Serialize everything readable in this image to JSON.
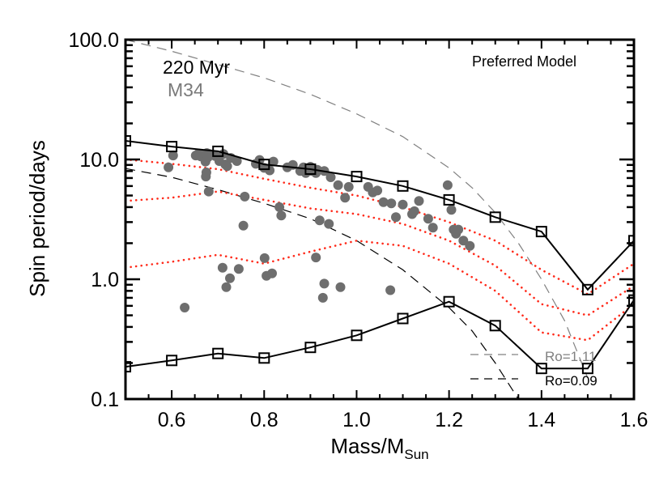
{
  "chart_data": {
    "type": "scatter",
    "title": "Preferred Model",
    "xlabel": "Mass/M_Sun",
    "xlabel_main": "Mass/M",
    "xlabel_sub": "Sun",
    "ylabel": "Spin period/days",
    "xlim": [
      0.5,
      1.6
    ],
    "ylim": [
      0.1,
      100.0
    ],
    "yscale": "log",
    "grid": false,
    "x_ticks": [
      0.6,
      0.8,
      1.0,
      1.2,
      1.4,
      1.6
    ],
    "x_tick_labels": [
      "0.6",
      "0.8",
      "1.0",
      "1.2",
      "1.4",
      "1.6"
    ],
    "y_ticks": [
      0.1,
      1.0,
      10.0,
      100.0
    ],
    "y_tick_labels": [
      "0.1",
      "1.0",
      "10.0",
      "100.0"
    ],
    "annotations": {
      "age": "220 Myr",
      "cluster": "M34",
      "model": "Preferred Model"
    },
    "legend": [
      {
        "label": "Ro=1.11",
        "style": "dashed",
        "color": "#808080"
      },
      {
        "label": "Ro=0.09",
        "style": "dashed",
        "color": "#000000"
      }
    ],
    "colors": {
      "model_line": "#000000",
      "percentile_lines": "#ff2a1a",
      "observed_points": "#6e6e6e",
      "ro_111": "#808080",
      "ro_009": "#000000"
    },
    "series": [
      {
        "name": "Model upper envelope",
        "style": "solid-line-open-squares",
        "x": [
          0.5,
          0.6,
          0.7,
          0.8,
          0.9,
          1.0,
          1.1,
          1.2,
          1.3,
          1.4,
          1.5,
          1.6
        ],
        "y": [
          14.3,
          12.8,
          11.7,
          9.1,
          8.3,
          7.2,
          6.0,
          4.6,
          3.3,
          2.5,
          0.82,
          2.1
        ]
      },
      {
        "name": "Model lower envelope",
        "style": "solid-line-open-squares",
        "x": [
          0.5,
          0.6,
          0.7,
          0.8,
          0.9,
          1.0,
          1.1,
          1.2,
          1.3,
          1.4,
          1.5,
          1.6
        ],
        "y": [
          0.186,
          0.21,
          0.24,
          0.22,
          0.27,
          0.34,
          0.47,
          0.65,
          0.41,
          0.18,
          0.18,
          0.67
        ]
      },
      {
        "name": "Percentile 90",
        "style": "dotted-red",
        "x": [
          0.5,
          0.6,
          0.7,
          0.8,
          0.9,
          1.0,
          1.1,
          1.2,
          1.3,
          1.4,
          1.5,
          1.6
        ],
        "y": [
          10.0,
          9.2,
          8.3,
          6.9,
          5.8,
          5.0,
          4.0,
          3.0,
          2.1,
          1.2,
          0.75,
          1.35
        ]
      },
      {
        "name": "Percentile 50",
        "style": "dotted-red",
        "x": [
          0.5,
          0.6,
          0.7,
          0.8,
          0.9,
          1.0,
          1.1,
          1.2,
          1.3,
          1.4,
          1.5,
          1.6
        ],
        "y": [
          4.5,
          4.8,
          5.4,
          4.6,
          3.9,
          3.5,
          2.9,
          2.1,
          1.3,
          0.62,
          0.5,
          0.88
        ]
      },
      {
        "name": "Percentile 10",
        "style": "dotted-red",
        "x": [
          0.5,
          0.6,
          0.7,
          0.8,
          0.9,
          1.0,
          1.1,
          1.2,
          1.3,
          1.4,
          1.5,
          1.6
        ],
        "y": [
          1.25,
          1.4,
          1.6,
          1.35,
          1.7,
          2.1,
          1.9,
          1.35,
          0.8,
          0.36,
          0.31,
          0.62
        ]
      },
      {
        "name": "Ro=1.11",
        "style": "dashed-gray",
        "x": [
          0.5,
          0.6,
          0.7,
          0.8,
          0.9,
          1.0,
          1.1,
          1.2,
          1.25,
          1.3,
          1.35,
          1.4,
          1.45,
          1.5
        ],
        "y": [
          100.0,
          80.0,
          62.0,
          48.0,
          35.0,
          24.0,
          15.5,
          8.5,
          5.8,
          3.6,
          2.0,
          1.0,
          0.45,
          0.15
        ]
      },
      {
        "name": "Ro=0.09",
        "style": "dashed-black",
        "x": [
          0.5,
          0.6,
          0.7,
          0.8,
          0.9,
          1.0,
          1.1,
          1.2,
          1.25,
          1.3,
          1.35
        ],
        "y": [
          8.4,
          7.1,
          5.6,
          4.3,
          3.2,
          2.1,
          1.2,
          0.58,
          0.37,
          0.2,
          0.1
        ]
      },
      {
        "name": "M34 observed",
        "style": "filled-gray-circles",
        "x": [
          0.593,
          0.603,
          0.628,
          0.652,
          0.658,
          0.663,
          0.669,
          0.674,
          0.675,
          0.68,
          0.676,
          0.678,
          0.673,
          0.682,
          0.694,
          0.703,
          0.712,
          0.716,
          0.72,
          0.728,
          0.741,
          0.758,
          0.782,
          0.79,
          0.8,
          0.812,
          0.82,
          0.837,
          0.85,
          0.862,
          0.878,
          0.885,
          0.89,
          0.9,
          0.903,
          0.912,
          0.915,
          0.92,
          0.93,
          0.944,
          0.96,
          0.975,
          0.983,
          1.025,
          1.035,
          1.045,
          1.058,
          1.075,
          1.085,
          1.1,
          1.12,
          1.125,
          1.135,
          1.155,
          1.165,
          1.197,
          1.205,
          1.21,
          1.215,
          1.22,
          1.231,
          1.245,
          0.71,
          0.718,
          0.726,
          0.745,
          0.801,
          0.805,
          0.817,
          0.833,
          0.912,
          0.927,
          0.93,
          0.965,
          1.073,
          0.755,
          0.94
        ],
        "y": [
          8.6,
          10.8,
          0.58,
          10.8,
          11.2,
          10.6,
          11.0,
          7.2,
          7.8,
          5.4,
          11.3,
          10.4,
          9.6,
          11.1,
          10.7,
          9.7,
          11.1,
          9.1,
          8.8,
          10.3,
          9.7,
          4.9,
          9.2,
          9.9,
          8.5,
          8.1,
          9.6,
          3.4,
          8.6,
          9.0,
          8.0,
          8.6,
          7.7,
          8.7,
          8.0,
          7.7,
          8.2,
          3.1,
          8.0,
          7.1,
          6.1,
          4.8,
          5.9,
          5.9,
          5.3,
          5.5,
          4.4,
          4.3,
          3.3,
          4.2,
          3.5,
          3.7,
          4.5,
          3.2,
          2.7,
          6.1,
          3.8,
          2.6,
          2.4,
          2.6,
          2.1,
          1.9,
          1.25,
          0.86,
          1.02,
          1.22,
          1.5,
          1.07,
          1.12,
          4.0,
          1.52,
          0.7,
          0.92,
          0.86,
          0.81,
          2.8,
          2.9
        ]
      }
    ]
  }
}
